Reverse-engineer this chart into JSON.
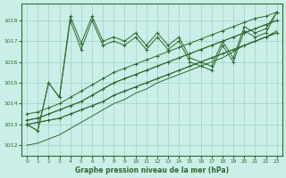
{
  "xlabel": "Graphe pression niveau de la mer (hPa)",
  "bg_color": "#cceee8",
  "grid_color": "#aad8d0",
  "line_color": "#2d6a2d",
  "marker_color": "#2d6a2d",
  "ylim": [
    1011.5,
    1018.8
  ],
  "xlim": [
    -0.5,
    23.5
  ],
  "yticks": [
    1012,
    1013,
    1014,
    1015,
    1016,
    1017,
    1018
  ],
  "xticks": [
    0,
    1,
    2,
    3,
    4,
    5,
    6,
    7,
    8,
    9,
    10,
    11,
    12,
    13,
    14,
    15,
    16,
    17,
    18,
    19,
    20,
    21,
    22,
    23
  ],
  "series": [
    [
      1013.0,
      1013.1,
      1013.2,
      1013.3,
      1013.5,
      1013.7,
      1013.9,
      1014.1,
      1014.4,
      1014.6,
      1014.8,
      1015.0,
      1015.2,
      1015.4,
      1015.6,
      1015.8,
      1016.0,
      1016.2,
      1016.4,
      1016.6,
      1016.8,
      1017.0,
      1017.2,
      1017.4
    ],
    [
      1013.2,
      1013.3,
      1013.5,
      1013.7,
      1013.9,
      1014.1,
      1014.4,
      1014.7,
      1015.0,
      1015.2,
      1015.4,
      1015.6,
      1015.8,
      1016.0,
      1016.2,
      1016.4,
      1016.6,
      1016.8,
      1017.0,
      1017.2,
      1017.4,
      1017.6,
      1017.8,
      1018.0
    ],
    [
      1013.5,
      1013.6,
      1013.8,
      1014.0,
      1014.3,
      1014.6,
      1014.9,
      1015.2,
      1015.5,
      1015.7,
      1015.9,
      1016.1,
      1016.3,
      1016.5,
      1016.7,
      1016.9,
      1017.1,
      1017.3,
      1017.5,
      1017.7,
      1017.9,
      1018.1,
      1018.2,
      1018.4
    ],
    [
      1013.0,
      1012.7,
      1015.0,
      1014.3,
      1018.0,
      1016.6,
      1018.0,
      1016.8,
      1017.0,
      1016.8,
      1017.2,
      1016.6,
      1017.2,
      1016.6,
      1017.0,
      1016.0,
      1015.8,
      1015.6,
      1016.8,
      1016.0,
      1017.5,
      1017.2,
      1017.4,
      1018.4
    ],
    [
      1013.0,
      1012.7,
      1015.0,
      1014.3,
      1018.2,
      1016.9,
      1018.2,
      1017.0,
      1017.2,
      1017.0,
      1017.4,
      1016.8,
      1017.4,
      1016.8,
      1017.2,
      1016.2,
      1016.0,
      1015.8,
      1017.0,
      1016.2,
      1017.7,
      1017.4,
      1017.6,
      1018.4
    ]
  ],
  "straight_series": [
    [
      1013.0,
      1013.1,
      1013.2,
      1013.3,
      1013.5,
      1013.7,
      1013.9,
      1014.1,
      1014.4,
      1014.6,
      1014.8,
      1015.0,
      1015.2,
      1015.4,
      1015.6,
      1015.8,
      1016.0,
      1016.2,
      1016.4,
      1016.6,
      1016.8,
      1017.0,
      1017.2,
      1017.4
    ],
    [
      1012.0,
      1012.1,
      1012.3,
      1012.5,
      1012.8,
      1013.1,
      1013.4,
      1013.7,
      1014.0,
      1014.2,
      1014.5,
      1014.7,
      1015.0,
      1015.2,
      1015.4,
      1015.6,
      1015.8,
      1016.0,
      1016.2,
      1016.5,
      1016.8,
      1017.0,
      1017.2,
      1017.5
    ],
    [
      1013.2,
      1013.3,
      1013.5,
      1013.7,
      1013.9,
      1014.1,
      1014.4,
      1014.7,
      1015.0,
      1015.2,
      1015.4,
      1015.6,
      1015.8,
      1016.0,
      1016.2,
      1016.4,
      1016.6,
      1016.8,
      1017.0,
      1017.2,
      1017.4,
      1017.6,
      1017.8,
      1018.0
    ]
  ]
}
